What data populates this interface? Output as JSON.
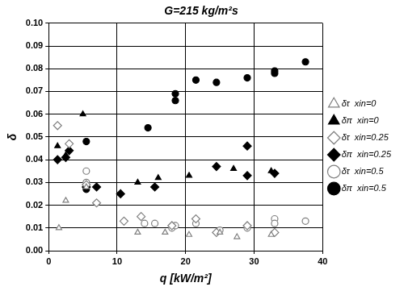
{
  "chart_data": {
    "type": "scatter",
    "title": "G=215 kg/m²s",
    "x_label": "q [kW/m²]",
    "y_label": "δ",
    "xlim": [
      0,
      40
    ],
    "xticks": [
      0,
      10,
      20,
      30,
      40
    ],
    "ylim": [
      0,
      0.1
    ],
    "yticks": [
      {
        "value": 0,
        "label": "0.00"
      },
      {
        "value": 0.01,
        "label": "0.01"
      },
      {
        "value": 0.02,
        "label": "0.02"
      },
      {
        "value": 0.03,
        "label": "0.03"
      },
      {
        "value": 0.04,
        "label": "0.04"
      },
      {
        "value": 0.05,
        "label": "0.05"
      },
      {
        "value": 0.06,
        "label": "0.06"
      },
      {
        "value": 0.07,
        "label": "0.07"
      },
      {
        "value": 0.08,
        "label": "0.08"
      },
      {
        "value": 0.09,
        "label": "0.09"
      },
      {
        "value": 0.1,
        "label": "0.10"
      }
    ],
    "grid": true,
    "legend": "right",
    "series": [
      {
        "name": "δτ  xin=0",
        "color": "#808080",
        "marker": "triangle-open",
        "x": [
          1.5,
          2.5,
          5.5,
          13,
          17,
          20.5,
          25,
          27.5,
          32.5
        ],
        "values": [
          0.01,
          0.022,
          0.028,
          0.008,
          0.008,
          0.007,
          0.008,
          0.006,
          0.007
        ]
      },
      {
        "name": "δπ  xin=0",
        "color": "#000000",
        "marker": "triangle",
        "x": [
          1.3,
          2.5,
          5,
          13,
          16,
          20.5,
          27,
          32.5
        ],
        "values": [
          0.046,
          0.042,
          0.06,
          0.03,
          0.032,
          0.033,
          0.036,
          0.035
        ]
      },
      {
        "name": "δτ  xin=0.25",
        "color": "#808080",
        "marker": "diamond-open",
        "x": [
          1.3,
          3,
          5.5,
          7,
          11,
          13.5,
          18,
          21.5,
          24.5,
          29,
          33
        ],
        "values": [
          0.055,
          0.047,
          0.029,
          0.021,
          0.013,
          0.015,
          0.011,
          0.014,
          0.008,
          0.011,
          0.008
        ]
      },
      {
        "name": "δπ  xin=0.25",
        "color": "#000000",
        "marker": "diamond",
        "x": [
          1.3,
          2.5,
          3,
          5.5,
          7,
          10.5,
          15.5,
          24.5,
          29,
          29,
          33
        ],
        "values": [
          0.04,
          0.041,
          0.044,
          0.028,
          0.028,
          0.025,
          0.028,
          0.037,
          0.033,
          0.046,
          0.034
        ]
      },
      {
        "name": "δτ  xin=0.5",
        "color": "#808080",
        "marker": "circle-open",
        "x": [
          5.5,
          5.5,
          14,
          15.5,
          18,
          18.5,
          21.5,
          25,
          29,
          33,
          33,
          37.5
        ],
        "values": [
          0.035,
          0.03,
          0.012,
          0.012,
          0.01,
          0.011,
          0.012,
          0.009,
          0.01,
          0.014,
          0.012,
          0.013
        ]
      },
      {
        "name": "δπ  xin=0.5",
        "color": "#000000",
        "marker": "circle",
        "x": [
          5.5,
          5.5,
          14.5,
          18.5,
          18.5,
          21.5,
          24.5,
          29,
          33,
          33,
          37.5
        ],
        "values": [
          0.048,
          0.027,
          0.054,
          0.066,
          0.069,
          0.075,
          0.074,
          0.076,
          0.078,
          0.079,
          0.083
        ]
      }
    ]
  }
}
